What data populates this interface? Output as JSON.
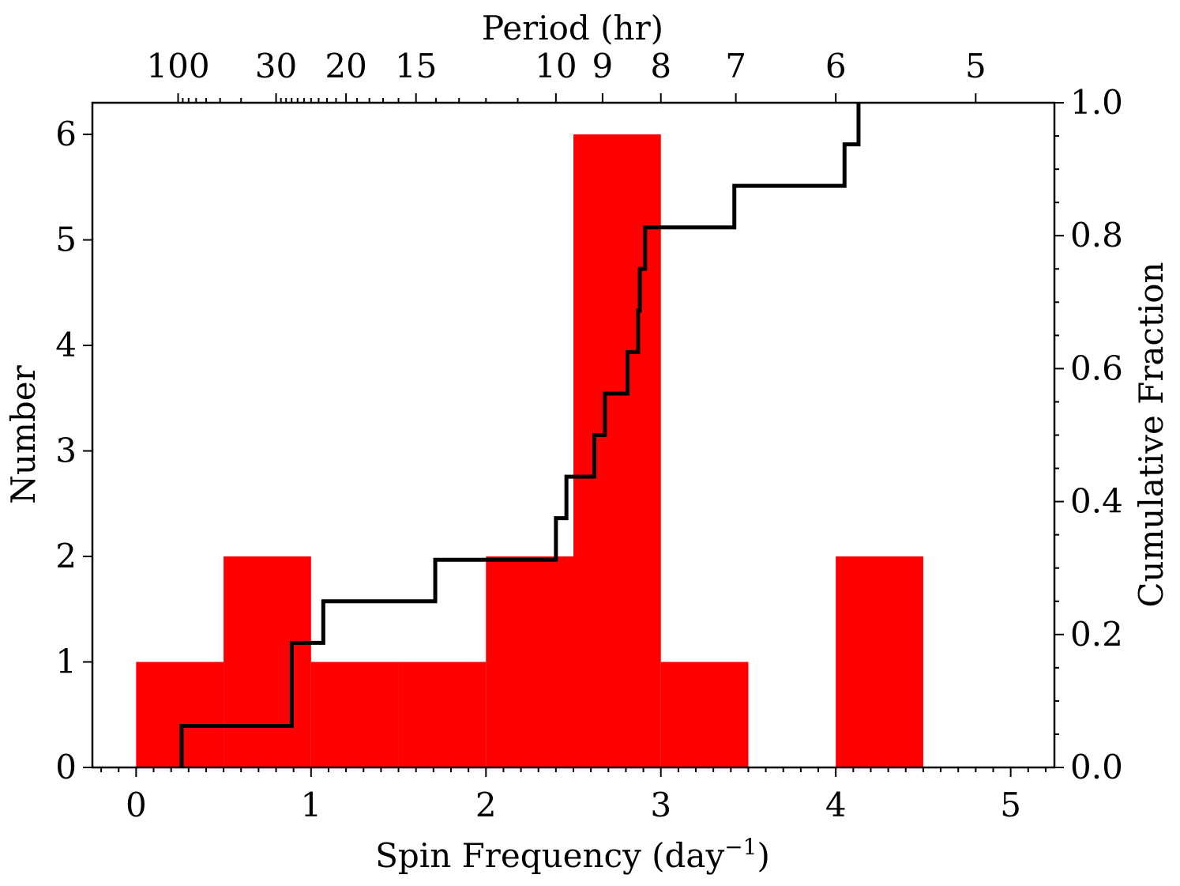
{
  "chart_data": {
    "type": "bar",
    "title": "",
    "xlabel": "Spin Frequency (day",
    "xlabel_superscript": "−1",
    "xlabel_suffix": ")",
    "ylabel": "Number",
    "y2label": "Cumulative Fraction",
    "top_xlabel": "Period (hr)",
    "xlim": [
      -0.25,
      5.25
    ],
    "ylim": [
      0,
      6.3
    ],
    "y2lim": [
      0,
      1.0
    ],
    "bar_color": "#ff0000",
    "cdf_color": "#000000",
    "bins": [
      {
        "x0": 0.0,
        "x1": 0.5,
        "count": 1
      },
      {
        "x0": 0.5,
        "x1": 1.0,
        "count": 2
      },
      {
        "x0": 1.0,
        "x1": 1.5,
        "count": 1
      },
      {
        "x0": 1.5,
        "x1": 2.0,
        "count": 1
      },
      {
        "x0": 2.0,
        "x1": 2.5,
        "count": 2
      },
      {
        "x0": 2.5,
        "x1": 3.0,
        "count": 6
      },
      {
        "x0": 3.0,
        "x1": 3.5,
        "count": 1
      },
      {
        "x0": 3.5,
        "x1": 4.0,
        "count": 0
      },
      {
        "x0": 4.0,
        "x1": 4.5,
        "count": 2
      },
      {
        "x0": 4.5,
        "x1": 5.0,
        "count": 0
      }
    ],
    "cdf_steps": [
      {
        "x": 0.26,
        "y": 0.0625
      },
      {
        "x": 0.89,
        "y": 0.1875
      },
      {
        "x": 1.07,
        "y": 0.25
      },
      {
        "x": 1.71,
        "y": 0.3125
      },
      {
        "x": 2.4,
        "y": 0.375
      },
      {
        "x": 2.46,
        "y": 0.4375
      },
      {
        "x": 2.62,
        "y": 0.5
      },
      {
        "x": 2.68,
        "y": 0.5625
      },
      {
        "x": 2.81,
        "y": 0.625
      },
      {
        "x": 2.87,
        "y": 0.6875
      },
      {
        "x": 2.88,
        "y": 0.75
      },
      {
        "x": 2.91,
        "y": 0.8125
      },
      {
        "x": 3.42,
        "y": 0.875
      },
      {
        "x": 4.05,
        "y": 0.9375
      },
      {
        "x": 4.13,
        "y": 1.0
      }
    ],
    "x_ticks": [
      0,
      1,
      2,
      3,
      4,
      5
    ],
    "x_tick_labels": [
      "0",
      "1",
      "2",
      "3",
      "4",
      "5"
    ],
    "y_ticks": [
      0,
      1,
      2,
      3,
      4,
      5,
      6
    ],
    "y_tick_labels": [
      "0",
      "1",
      "2",
      "3",
      "4",
      "5",
      "6"
    ],
    "y2_ticks": [
      0.0,
      0.2,
      0.4,
      0.6,
      0.8,
      1.0
    ],
    "y2_tick_labels": [
      "0.0",
      "0.2",
      "0.4",
      "0.6",
      "0.8",
      "1.0"
    ],
    "top_ticks_hours": [
      100,
      30,
      20,
      15,
      10,
      9,
      8,
      7,
      6,
      5
    ],
    "top_tick_labels": [
      "100",
      "30",
      "20",
      "15",
      "10",
      "9",
      "8",
      "7",
      "6",
      "5"
    ],
    "top_minor_hours": [
      90,
      80,
      70,
      60,
      50,
      40,
      29,
      28,
      27,
      26,
      25,
      24,
      23,
      22,
      21,
      19,
      18,
      17,
      16,
      14,
      13,
      12,
      11
    ]
  }
}
